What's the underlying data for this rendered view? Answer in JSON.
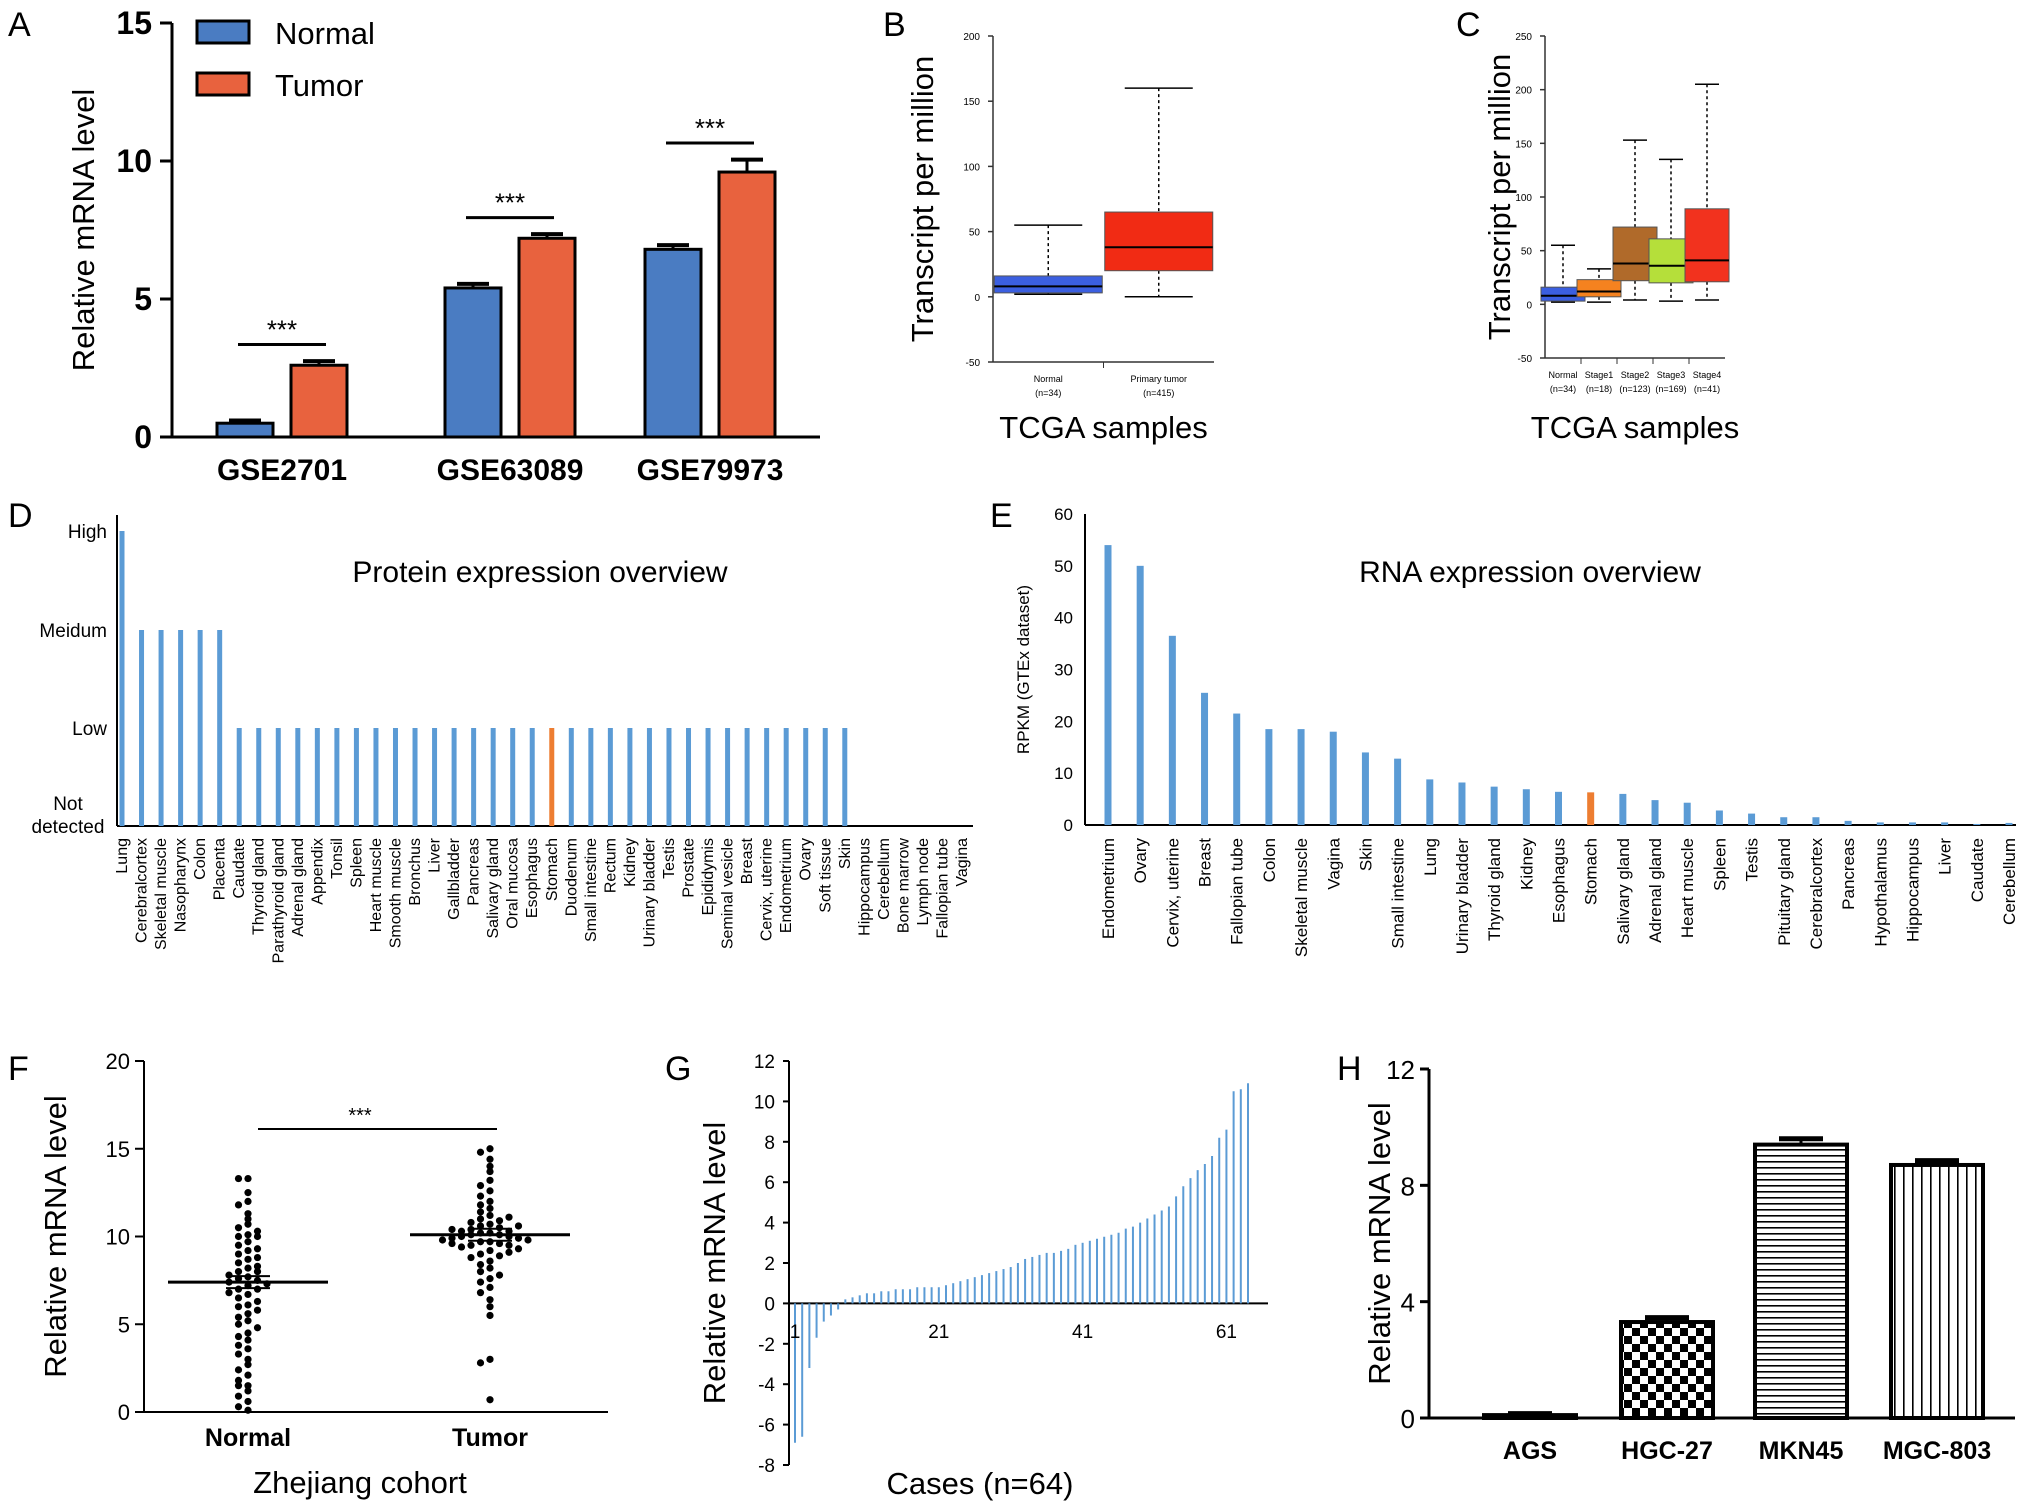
{
  "colors": {
    "normal_blue": "#4a7cc2",
    "tumor_orange": "#e8623e",
    "bar_blue": "#5b9bd5",
    "highlight_orange": "#ed7d31",
    "box_normal": "#3b5fe0",
    "box_tumor": "#f12b14",
    "box_stage1": "#f5821f",
    "box_stage2": "#b06a2a",
    "box_stage3": "#b5df3a",
    "box_stage4": "#f2321e"
  },
  "chart_data": [
    {
      "panel": "A",
      "type": "bar",
      "ylabel": "Relative mRNA level",
      "ylim": [
        0,
        15
      ],
      "yticks": [
        "0",
        "5",
        "10",
        "15"
      ],
      "categories": [
        "GSE2701",
        "GSE63089",
        "GSE79973"
      ],
      "legend": [
        "Normal",
        "Tumor"
      ],
      "series": [
        {
          "name": "Normal",
          "values": [
            0.5,
            5.4,
            6.8
          ],
          "errors": [
            0.1,
            0.15,
            0.15
          ]
        },
        {
          "name": "Tumor",
          "values": [
            2.6,
            7.2,
            9.6
          ],
          "errors": [
            0.15,
            0.15,
            0.45
          ]
        }
      ],
      "significance": [
        "***",
        "***",
        "***"
      ]
    },
    {
      "panel": "B",
      "type": "box",
      "ylabel": "Transcript per million",
      "xlabel": "TCGA samples",
      "ylim": [
        -50,
        200
      ],
      "yticks": [
        "-50",
        "0",
        "50",
        "100",
        "150",
        "200"
      ],
      "groups": [
        {
          "label": "Normal",
          "n": "(n=34)",
          "min": 2,
          "q1": 3,
          "median": 8,
          "q3": 16,
          "max": 55
        },
        {
          "label": "Primary tumor",
          "n": "(n=415)",
          "min": 0,
          "q1": 20,
          "median": 38,
          "q3": 65,
          "max": 160
        }
      ]
    },
    {
      "panel": "C",
      "type": "box",
      "ylabel": "Transcript per million",
      "xlabel": "TCGA samples",
      "ylim": [
        -50,
        250
      ],
      "yticks": [
        "-50",
        "0",
        "50",
        "100",
        "150",
        "200",
        "250"
      ],
      "groups": [
        {
          "label": "Normal",
          "n": "(n=34)",
          "min": 2,
          "q1": 3,
          "median": 8,
          "q3": 16,
          "max": 55
        },
        {
          "label": "Stage1",
          "n": "(n=18)",
          "min": 2,
          "q1": 7,
          "median": 12,
          "q3": 23,
          "max": 33
        },
        {
          "label": "Stage2",
          "n": "(n=123)",
          "min": 4,
          "q1": 22,
          "median": 38,
          "q3": 72,
          "max": 153
        },
        {
          "label": "Stage3",
          "n": "(n=169)",
          "min": 3,
          "q1": 20,
          "median": 36,
          "q3": 61,
          "max": 135
        },
        {
          "label": "Stage4",
          "n": "(n=41)",
          "min": 4,
          "q1": 21,
          "median": 41,
          "q3": 89,
          "max": 205
        }
      ]
    },
    {
      "panel": "D",
      "type": "bar",
      "title": "Protein  expression overview",
      "ylevels": [
        "Not detected",
        "Low",
        "Meidum",
        "High"
      ],
      "categories": [
        "Lung",
        "Cerebralcortex",
        "Skeletal muscle",
        "Nasopharynx",
        "Colon",
        "Placenta",
        "Caudate",
        "Thyroid gland",
        "Parathyroid gland",
        "Adrenal gland",
        "Appendix",
        "Tonsil",
        "Spleen",
        "Heart muscle",
        "Smooth muscle",
        "Bronchus",
        "Liver",
        "Gallbladder",
        "Pancreas",
        "Salivary gland",
        "Oral mucosa",
        "Esophagus",
        "Stomach",
        "Duodenum",
        "Small intestine",
        "Rectum",
        "Kidney",
        "Urinary bladder",
        "Testis",
        "Prostate",
        "Epididymis",
        "Seminal vesicle",
        "Breast",
        "Cervix, uterine",
        "Endometrium",
        "Ovary",
        "Soft tissue",
        "Skin",
        "Hippocampus",
        "Cerebellum",
        "Bone marrow",
        "Lymph node",
        "Fallopian tube",
        "Vagina"
      ],
      "values": [
        3,
        2,
        2,
        2,
        2,
        2,
        1,
        1,
        1,
        1,
        1,
        1,
        1,
        1,
        1,
        1,
        1,
        1,
        1,
        1,
        1,
        1,
        1,
        1,
        1,
        1,
        1,
        1,
        1,
        1,
        1,
        1,
        1,
        1,
        1,
        1,
        1,
        1,
        0,
        0,
        0,
        0,
        0,
        0
      ],
      "highlight": "Stomach"
    },
    {
      "panel": "E",
      "type": "bar",
      "title": "RNA  expression overview",
      "ylabel": "RPKM (GTEx dataset)",
      "ylim": [
        0,
        60
      ],
      "yticks": [
        "0",
        "10",
        "20",
        "30",
        "40",
        "50",
        "60"
      ],
      "categories": [
        "Endometrium",
        "Ovary",
        "Cervix, uterine",
        "Breast",
        "Fallopian tube",
        "Colon",
        "Skeletal muscle",
        "Vagina",
        "Skin",
        "Small intestine",
        "Lung",
        "Urinary bladder",
        "Thyroid gland",
        "Kidney",
        "Esophagus",
        "Stomach",
        "Salivary gland",
        "Adrenal gland",
        "Heart muscle",
        "Spleen",
        "Testis",
        "Pituitary gland",
        "Cerebralcortex",
        "Pancreas",
        "Hypothalamus",
        "Hippocampus",
        "Liver",
        "Caudate",
        "Cerebellum"
      ],
      "values": [
        54,
        50,
        36.5,
        25.5,
        21.5,
        18.5,
        18.5,
        18,
        14,
        12.8,
        8.8,
        8.2,
        7.4,
        6.9,
        6.4,
        6.3,
        6,
        4.8,
        4.3,
        2.8,
        2.2,
        1.5,
        1.5,
        0.8,
        0.5,
        0.5,
        0.5,
        0.2,
        0.4
      ],
      "highlight": "Stomach"
    },
    {
      "panel": "F",
      "type": "scatter",
      "ylabel": "Relative mRNA level",
      "xlabel": "Zhejiang cohort",
      "ylim": [
        0,
        20
      ],
      "yticks": [
        "0",
        "5",
        "10",
        "15",
        "20"
      ],
      "categories": [
        "Normal",
        "Tumor"
      ],
      "means": [
        7.4,
        10.1
      ],
      "significance": "***",
      "series": [
        {
          "name": "Normal",
          "values": [
            13.3,
            13.3,
            12.5,
            12,
            11.8,
            11.3,
            11,
            10.7,
            10.5,
            10.3,
            10.1,
            10,
            10,
            9.7,
            9.5,
            9.3,
            9.2,
            9,
            8.8,
            8.7,
            8.5,
            8.3,
            8.2,
            8,
            8,
            7.8,
            7.7,
            7.6,
            7.5,
            7.4,
            7.3,
            7.2,
            7,
            7,
            6.8,
            6.7,
            6.5,
            6.3,
            6.1,
            6,
            5.8,
            5.6,
            5.4,
            5.2,
            5,
            4.8,
            4.5,
            4.3,
            4.1,
            3.8,
            3.6,
            3.3,
            3,
            2.7,
            2.4,
            2.1,
            1.8,
            1.5,
            1.2,
            0.9,
            0.6,
            0.3,
            1.5,
            0.1
          ]
        },
        {
          "name": "Tumor",
          "values": [
            15,
            14.8,
            14.4,
            14,
            13.7,
            13.2,
            12.9,
            12.6,
            12.3,
            12,
            11.8,
            11.6,
            11.4,
            11.2,
            11,
            10.9,
            10.8,
            10.7,
            10.6,
            10.5,
            10.4,
            10.3,
            10.3,
            10.2,
            10.2,
            10.1,
            10.1,
            10,
            10,
            9.9,
            9.9,
            9.8,
            9.8,
            9.7,
            9.7,
            9.6,
            9.5,
            9.5,
            9.4,
            9.3,
            9.2,
            9,
            8.9,
            8.8,
            8.6,
            8.4,
            8.2,
            8,
            7.8,
            7.6,
            7.4,
            7.1,
            6.8,
            6.4,
            6,
            5.5,
            3,
            2.8,
            0.7,
            9.1,
            10.6,
            11.1,
            10.4,
            9.6
          ]
        }
      ]
    },
    {
      "panel": "G",
      "type": "bar",
      "ylabel": "Relative mRNA level",
      "xlabel": "Cases (n=64)",
      "ylim": [
        -8,
        12
      ],
      "yticks": [
        "-8",
        "-6",
        "-4",
        "-2",
        "0",
        "2",
        "4",
        "6",
        "8",
        "10",
        "12"
      ],
      "xticks": [
        "1",
        "21",
        "41",
        "61"
      ],
      "values": [
        -6.9,
        -6.6,
        -3.2,
        -1.7,
        -0.9,
        -0.6,
        -0.3,
        0.2,
        0.3,
        0.4,
        0.5,
        0.5,
        0.6,
        0.6,
        0.7,
        0.7,
        0.7,
        0.8,
        0.8,
        0.8,
        0.8,
        0.9,
        1,
        1.1,
        1.2,
        1.3,
        1.4,
        1.5,
        1.6,
        1.7,
        1.8,
        2,
        2.2,
        2.3,
        2.4,
        2.5,
        2.5,
        2.6,
        2.7,
        2.9,
        3,
        3.1,
        3.2,
        3.3,
        3.4,
        3.5,
        3.7,
        3.8,
        4,
        4.2,
        4.4,
        4.6,
        4.8,
        5.3,
        5.8,
        6.2,
        6.6,
        6.9,
        7.3,
        8.2,
        8.6,
        10.5,
        10.6,
        10.9
      ]
    },
    {
      "panel": "H",
      "type": "bar",
      "ylabel": "Relative mRNA level",
      "ylim": [
        0,
        12
      ],
      "yticks": [
        "0",
        "4",
        "8",
        "12"
      ],
      "categories": [
        "AGS",
        "HGC-27",
        "MKN45",
        "MGC-803"
      ],
      "values": [
        0.1,
        3.3,
        9.4,
        8.7
      ],
      "errors": [
        0.05,
        0.15,
        0.2,
        0.15
      ],
      "patterns": [
        "plain",
        "checker",
        "horizontal",
        "vertical"
      ]
    }
  ]
}
